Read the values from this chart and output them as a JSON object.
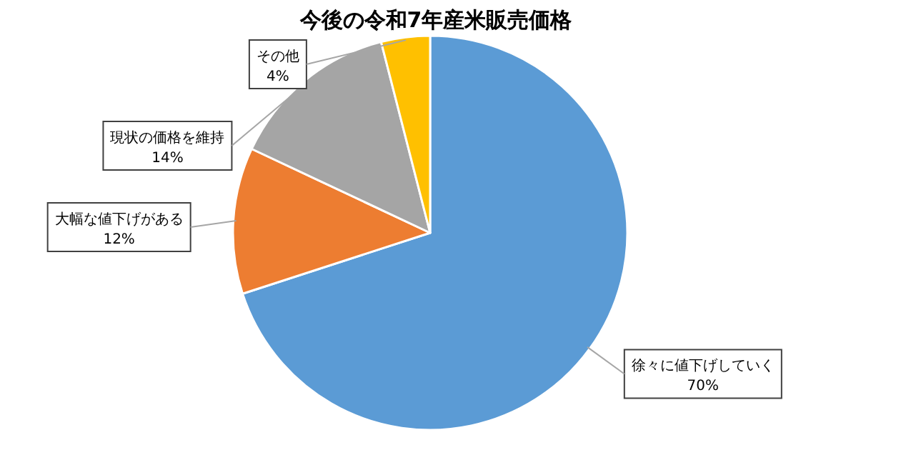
{
  "chart_data": {
    "type": "pie",
    "title": "今後の令和7年産米販売価格",
    "categories": [
      "徐々に値下げしていく",
      "大幅な値下げがある",
      "現状の価格を維持",
      "その他"
    ],
    "values": [
      70,
      12,
      14,
      4
    ],
    "value_labels": [
      "70%",
      "12%",
      "14%",
      "4%"
    ],
    "colors": [
      "#5b9bd5",
      "#ed7d31",
      "#a5a5a5",
      "#ffc000"
    ]
  }
}
